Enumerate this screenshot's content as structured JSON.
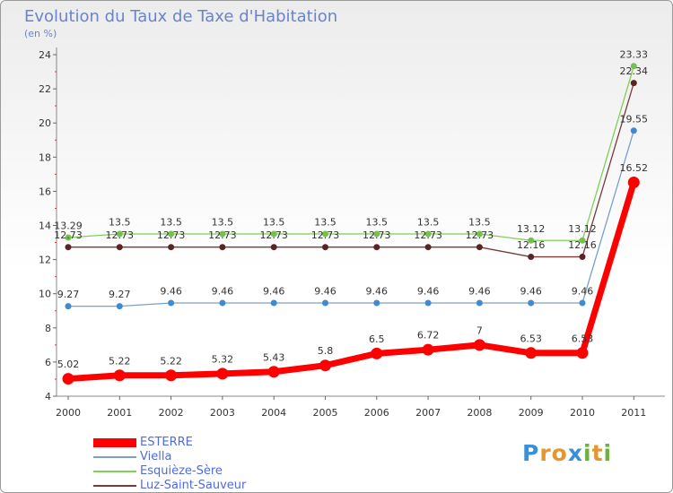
{
  "title": "Evolution du Taux de Taxe d'Habitation",
  "subtitle": "(en %)",
  "logo": {
    "text": "Proxiti",
    "letters": [
      "P",
      "r",
      "o",
      "x",
      "i",
      "t",
      "i"
    ],
    "colors": [
      "#3a8fd6",
      "#e4972c",
      "#e4972c",
      "#3a8fd6",
      "#6cb33e",
      "#e4972c",
      "#6cb33e"
    ]
  },
  "chart_data": {
    "type": "line",
    "x": [
      "2000",
      "2001",
      "2002",
      "2003",
      "2004",
      "2005",
      "2006",
      "2007",
      "2008",
      "2009",
      "2010",
      "2011"
    ],
    "ylim": [
      4,
      24
    ],
    "yticks": [
      "4",
      "6",
      "8",
      "10",
      "12",
      "14",
      "16",
      "18",
      "20",
      "22",
      "24"
    ],
    "grid": false,
    "legend_position": "bottom-left",
    "series": [
      {
        "name": "Esquièze-Sère",
        "color": "#7ed05a",
        "marker": "#74c14c",
        "width": 1.3,
        "r": 3.5,
        "values": [
          13.29,
          13.5,
          13.5,
          13.5,
          13.5,
          13.5,
          13.5,
          13.5,
          13.5,
          13.12,
          13.12,
          23.33
        ],
        "labels": [
          "13.29",
          "13.5",
          "13.5",
          "13.5",
          "13.5",
          "13.5",
          "13.5",
          "13.5",
          "13.5",
          "13.12",
          "13.12",
          "23.33"
        ]
      },
      {
        "name": "Luz-Saint-Sauveur",
        "color": "#7a3a3a",
        "marker": "#5a2424",
        "width": 1.3,
        "r": 3.5,
        "values": [
          12.73,
          12.73,
          12.73,
          12.73,
          12.73,
          12.73,
          12.73,
          12.73,
          12.73,
          12.16,
          12.16,
          22.34
        ],
        "labels": [
          "12.73",
          "12.73",
          "12.73",
          "12.73",
          "12.73",
          "12.73",
          "12.73",
          "12.73",
          "12.73",
          "12.16",
          "12.16",
          "22.34"
        ]
      },
      {
        "name": "Viella",
        "color": "#7aa0c8",
        "marker": "#3f8ad0",
        "width": 1.3,
        "r": 3.5,
        "values": [
          9.27,
          9.27,
          9.46,
          9.46,
          9.46,
          9.46,
          9.46,
          9.46,
          9.46,
          9.46,
          9.46,
          19.55
        ],
        "labels": [
          "9.27",
          "9.27",
          "9.46",
          "9.46",
          "9.46",
          "9.46",
          "9.46",
          "9.46",
          "9.46",
          "9.46",
          "9.46",
          "19.55"
        ]
      },
      {
        "name": "ESTERRE",
        "color": "#ff0000",
        "marker": "#ff0000",
        "width": 7,
        "r": 6.5,
        "values": [
          5.02,
          5.22,
          5.22,
          5.32,
          5.43,
          5.8,
          6.5,
          6.72,
          7,
          6.53,
          6.53,
          16.52
        ],
        "labels": [
          "5.02",
          "5.22",
          "5.22",
          "5.32",
          "5.43",
          "5.8",
          "6.5",
          "6.72",
          "7",
          "6.53",
          "6.53",
          "16.52"
        ]
      }
    ]
  }
}
